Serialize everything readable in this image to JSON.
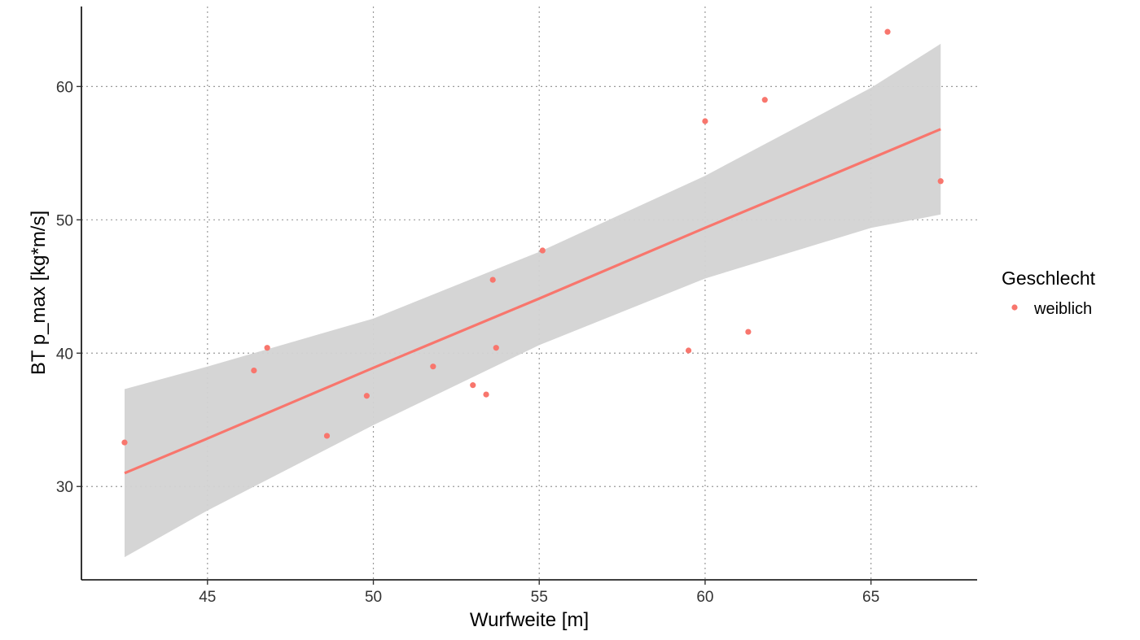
{
  "chart_data": {
    "type": "scatter",
    "title": "",
    "xlabel": "Wurfweite [m]",
    "ylabel": "BT p_max [kg*m/s]",
    "xlim": [
      41.2,
      68.2
    ],
    "ylim": [
      23,
      66
    ],
    "xticks": [
      45,
      50,
      55,
      60,
      65
    ],
    "yticks": [
      30,
      40,
      50,
      60
    ],
    "grid": true,
    "legend": {
      "title": "Geschlecht",
      "position": "right",
      "entries": [
        {
          "label": "weiblich",
          "color": "#F8766D"
        }
      ]
    },
    "series": [
      {
        "name": "weiblich",
        "color": "#F8766D",
        "points": [
          {
            "x": 42.5,
            "y": 33.3
          },
          {
            "x": 46.4,
            "y": 38.7
          },
          {
            "x": 46.8,
            "y": 40.4
          },
          {
            "x": 48.6,
            "y": 33.8
          },
          {
            "x": 49.8,
            "y": 36.8
          },
          {
            "x": 51.8,
            "y": 39.0
          },
          {
            "x": 53.0,
            "y": 37.6
          },
          {
            "x": 53.4,
            "y": 36.9
          },
          {
            "x": 53.6,
            "y": 45.5
          },
          {
            "x": 53.7,
            "y": 40.4
          },
          {
            "x": 55.1,
            "y": 47.7
          },
          {
            "x": 59.5,
            "y": 40.2
          },
          {
            "x": 60.0,
            "y": 57.4
          },
          {
            "x": 61.3,
            "y": 41.6
          },
          {
            "x": 61.8,
            "y": 59.0
          },
          {
            "x": 65.5,
            "y": 64.1
          },
          {
            "x": 67.1,
            "y": 52.9
          }
        ]
      }
    ],
    "regression": {
      "color": "#F8766D",
      "band_color": "#D3D3D3",
      "x": [
        42.5,
        45.0,
        50.0,
        55.0,
        60.0,
        65.0,
        67.1
      ],
      "fit": [
        31.0,
        33.6,
        38.9,
        44.1,
        49.4,
        54.6,
        56.8
      ],
      "lower": [
        24.7,
        28.2,
        34.6,
        40.6,
        45.6,
        49.4,
        50.4
      ],
      "upper": [
        37.3,
        39.0,
        42.6,
        47.6,
        53.3,
        59.9,
        63.2
      ]
    }
  }
}
